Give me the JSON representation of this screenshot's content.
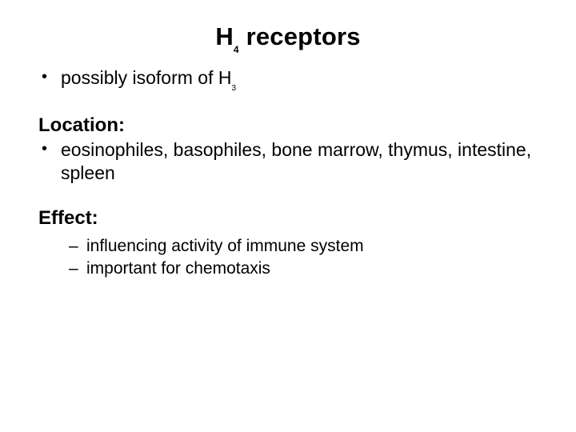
{
  "title": {
    "pre": "H",
    "sub": "4",
    "post": " receptors"
  },
  "intro_bullets": [
    {
      "pre": "possibly isoform of H",
      "sub": "3",
      "post": ""
    }
  ],
  "sections": [
    {
      "label": "Location:",
      "style": "bullets",
      "items": [
        "eosinophiles, basophiles, bone marrow, thymus, intestine, spleen"
      ]
    },
    {
      "label": "Effect:",
      "style": "dashes",
      "items": [
        "influencing activity of immune system",
        "important for chemotaxis"
      ]
    }
  ],
  "colors": {
    "background": "#ffffff",
    "text": "#000000"
  },
  "fontsizes": {
    "title": 31,
    "body": 23,
    "section_label": 24,
    "dash_item": 21
  }
}
